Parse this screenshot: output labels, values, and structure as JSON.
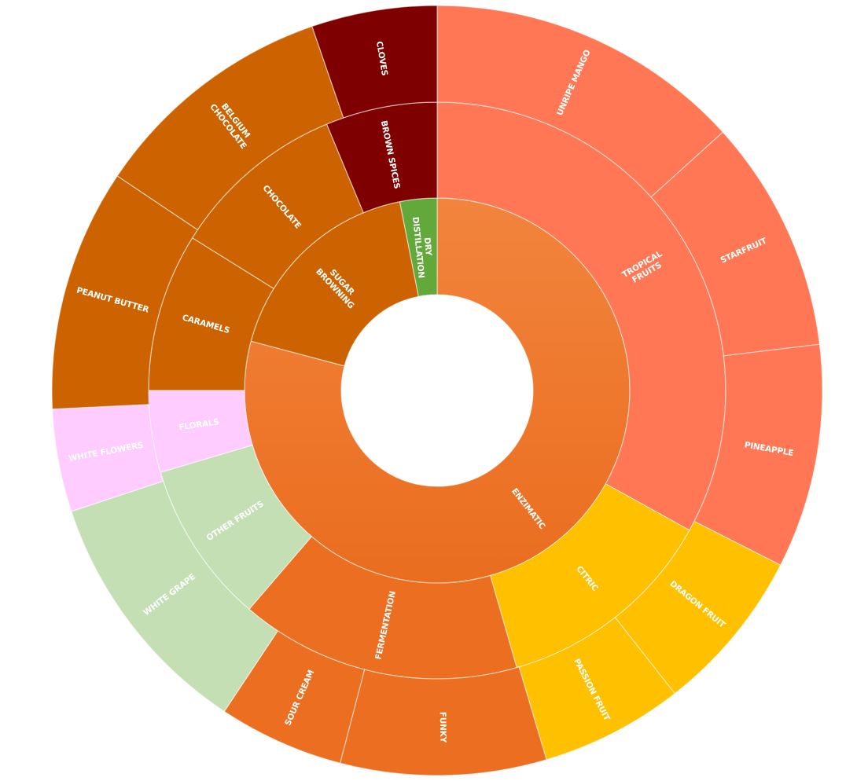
{
  "chart_data": {
    "type": "sunburst",
    "colors": {
      "enzimatic_top": "#F2843D",
      "enzimatic_bottom": "#EA6D1F",
      "dry_distillation": "#62A83A",
      "sugar_browning": "#CC6300",
      "brown_spices": "#7F0000",
      "tropical": "#FF7755",
      "citric": "#FFC000",
      "fermentation": "#EC6E20",
      "other_fruits": "#C5DFB5",
      "florals": "#FFCCFF"
    },
    "rings": [
      {
        "level": 1,
        "segments": [
          {
            "label": "ENZIMATIC",
            "value": 67.24,
            "color": "enzimatic"
          },
          {
            "label": "SUGAR BROWNING",
            "value": 15.1,
            "color": "#CC6300"
          },
          {
            "label": "DRY DISTILLATION",
            "value": 2.64,
            "color": "#62A83A"
          }
        ]
      },
      {
        "level": 2,
        "segments": [
          {
            "label": "TROPICAL FRUITS",
            "value": 26.45,
            "color": "#FF7755"
          },
          {
            "label": "CITRIC",
            "value": 10.0,
            "color": "#FFC000"
          },
          {
            "label": "FERMENTATION",
            "value": 12.6,
            "color": "#EC6E20"
          },
          {
            "label": "OTHER FRUITS",
            "value": 7.3,
            "color": "#C5DFB5"
          },
          {
            "label": "FLORALS",
            "value": 3.67,
            "color": "#FFCCFF"
          },
          {
            "label": "CARAMELS",
            "value": 7.1,
            "color": "#CC6300"
          },
          {
            "label": "CHOCOLATE",
            "value": 7.9,
            "color": "#CC6300"
          },
          {
            "label": "BROWN SPICES",
            "value": 5.0,
            "color": "#7F0000"
          }
        ]
      },
      {
        "level": 3,
        "segments": [
          {
            "label": "UNRIPE MANGO",
            "value": 12.63,
            "color": "#FF7755"
          },
          {
            "label": "STARFRUIT",
            "value": 9.3,
            "color": "#FF7755"
          },
          {
            "label": "PINEAPPLE",
            "value": 8.94,
            "color": "#FF7755"
          },
          {
            "label": "DRAGON FRUIT",
            "value": 6.58,
            "color": "#FFC000"
          },
          {
            "label": "PASSION FRUIT",
            "value": 5.7,
            "color": "#FFC000"
          },
          {
            "label": "FUNKY",
            "value": 8.2,
            "color": "#EC6E20"
          },
          {
            "label": "SOUR CREAM",
            "value": 5.0,
            "color": "#EC6E20"
          },
          {
            "label": "WHITE GRAPE",
            "value": 10.07,
            "color": "#C5DFB5"
          },
          {
            "label": "WHITE FLOWERS",
            "value": 4.1,
            "color": "#FFCCFF"
          },
          {
            "label": "PEANUT BUTTER",
            "value": 9.67,
            "color": "#CC6300"
          },
          {
            "label": "BELGIUM CHOCOLATE",
            "value": 9.81,
            "color": "#CC6300"
          },
          {
            "label": "CLOVES",
            "value": 5.0,
            "color": "#7F0000"
          }
        ]
      }
    ]
  }
}
